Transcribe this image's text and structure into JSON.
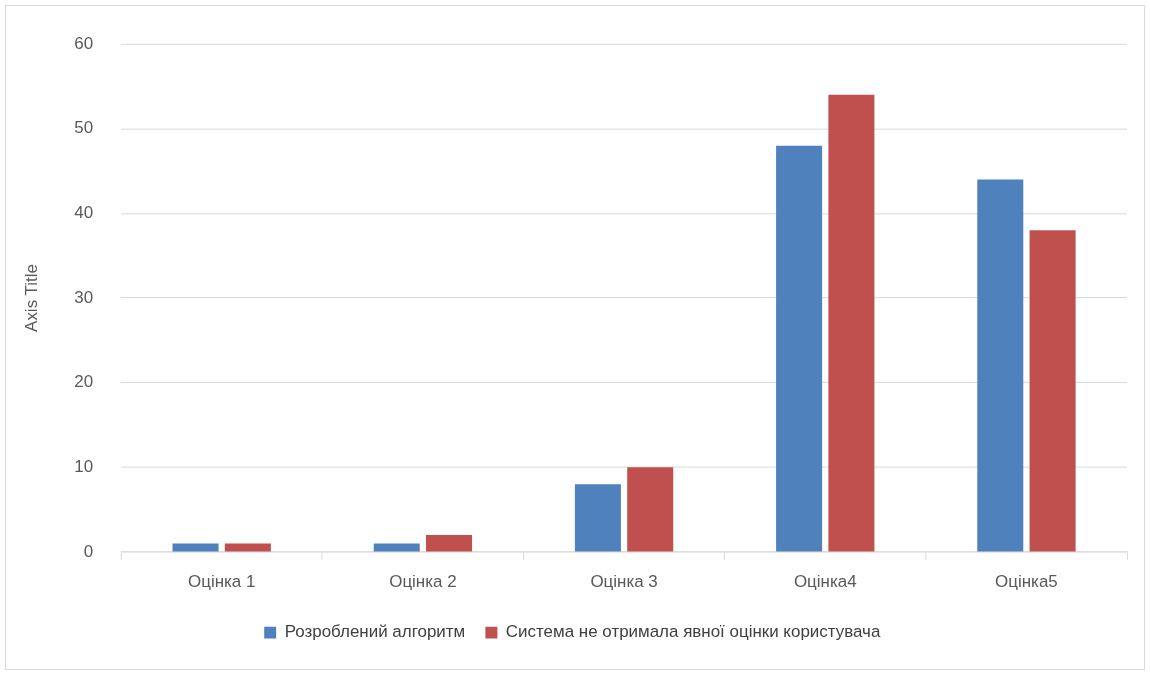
{
  "chart_data": {
    "type": "bar",
    "ylabel": "Axis Title",
    "categories": [
      "Оцінка 1",
      "Оцінка 2",
      "Оцінка 3",
      "Оцінка4",
      "Оцінка5"
    ],
    "series": [
      {
        "name": "Розроблений алгоритм",
        "color": "#4f81bd",
        "values": [
          1,
          1,
          8,
          48,
          44
        ]
      },
      {
        "name": "Система не отримала явної оцінки користувача",
        "color": "#c0504d",
        "values": [
          1,
          2,
          10,
          54,
          38
        ]
      }
    ],
    "ylim": [
      0,
      60
    ],
    "yticks": [
      0,
      10,
      20,
      30,
      40,
      50,
      60
    ],
    "grid": "y",
    "legend": "bottom"
  }
}
